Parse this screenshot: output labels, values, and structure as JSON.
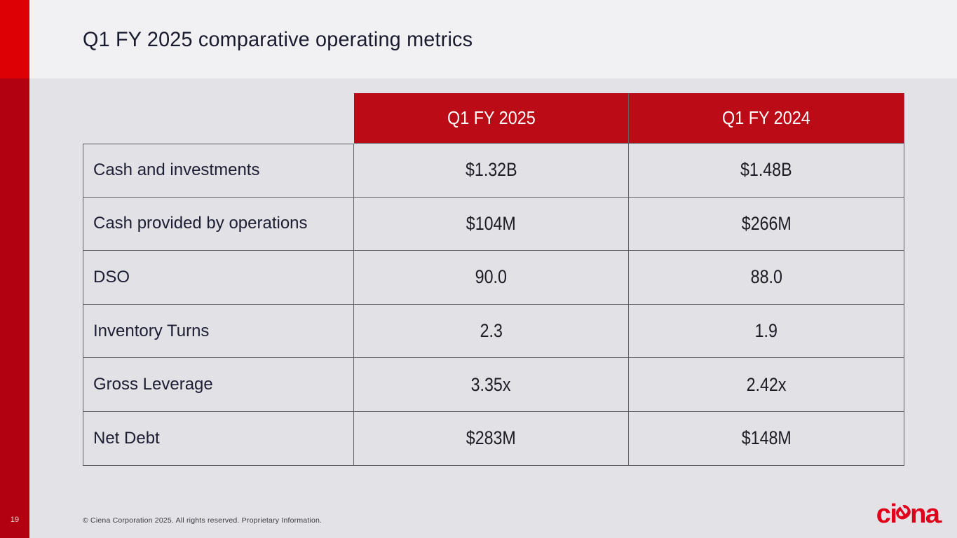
{
  "slide": {
    "title": "Q1 FY 2025 comparative operating metrics",
    "page_number": "19",
    "footer_text": "© Ciena Corporation 2025. All rights reserved. Proprietary Information.",
    "logo": {
      "part1": "ci",
      "part2": "e",
      "part3": "na",
      "dot": "."
    }
  },
  "table": {
    "columns": [
      "Q1 FY 2025",
      "Q1 FY 2024"
    ],
    "rows": [
      {
        "label": "Cash and investments",
        "q1_fy2025": "$1.32B",
        "q1_fy2024": "$1.48B"
      },
      {
        "label": "Cash provided by operations",
        "q1_fy2025": "$104M",
        "q1_fy2024": "$266M"
      },
      {
        "label": "DSO",
        "q1_fy2025": "90.0",
        "q1_fy2024": "88.0"
      },
      {
        "label": "Inventory Turns",
        "q1_fy2025": "2.3",
        "q1_fy2024": "1.9"
      },
      {
        "label": "Gross Leverage",
        "q1_fy2025": "3.35x",
        "q1_fy2024": "2.42x"
      },
      {
        "label": "Net Debt",
        "q1_fy2025": "$283M",
        "q1_fy2024": "$148M"
      }
    ]
  },
  "colors": {
    "accent_bright_red": "#dd0004",
    "accent_dark_red": "#b20211",
    "table_header_red": "#ba0b16",
    "logo_red": "#e0001c",
    "header_band_bg": "#f1f1f4",
    "body_bg": "#e3e2e7",
    "border": "#5f5f67"
  }
}
